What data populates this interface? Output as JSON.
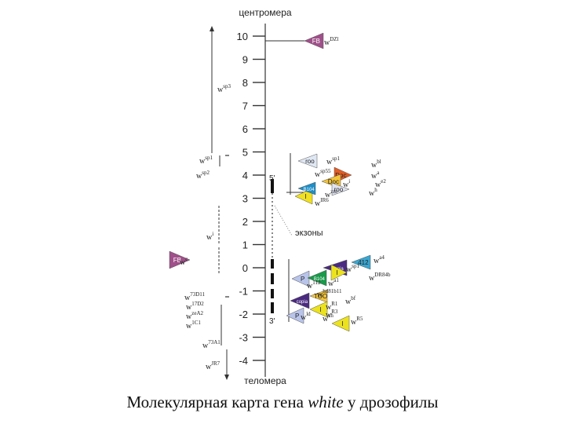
{
  "title": "центромера",
  "bottom_label": "теломера",
  "exons_label": "экзоны",
  "five_prime": "5'",
  "three_prime": "3'",
  "caption": {
    "before": "Молекулярная карта гена ",
    "gene": "white",
    "after": "  у дрозофилы"
  },
  "scale_ticks": [
    "10",
    "9",
    "8",
    "7",
    "6",
    "5",
    "4",
    "3",
    "2",
    "1",
    "0",
    "-1",
    "-2",
    "-3",
    "-4"
  ],
  "left_alleles": [
    {
      "base": "w",
      "sup": "sp3"
    },
    {
      "base": "w",
      "sup": "sp1"
    },
    {
      "base": "w",
      "sup": "sp2"
    },
    {
      "base": "w",
      "sup": "i"
    },
    {
      "base": "w",
      "sup": "c"
    },
    {
      "base": "w",
      "sup": "73D11"
    },
    {
      "base": "w",
      "sup": "17D2"
    },
    {
      "base": "w",
      "sup": "zeA2"
    },
    {
      "base": "w",
      "sup": "1C1"
    },
    {
      "base": "w",
      "sup": "73A1"
    },
    {
      "base": "w",
      "sup": "JR7"
    }
  ],
  "right_alleles": [
    {
      "base": "w",
      "sup": "DZl"
    },
    {
      "base": "w",
      "sup": "sp1"
    },
    {
      "base": "w",
      "sup": "sp55"
    },
    {
      "base": "w",
      "sup": "zm"
    },
    {
      "base": "w",
      "sup": "IR6"
    },
    {
      "base": "w",
      "sup": "i"
    },
    {
      "base": "w",
      "sup": "bl"
    },
    {
      "base": "w",
      "sup": "a"
    },
    {
      "base": "w",
      "sup": "e2"
    },
    {
      "base": "w",
      "sup": "h"
    },
    {
      "base": "w",
      "sup": "a4"
    },
    {
      "base": "w",
      "sup": "sp1"
    },
    {
      "base": "w",
      "sup": "DR84b"
    },
    {
      "base": "w",
      "sup": "112"
    },
    {
      "base": "w",
      "sup": "a1"
    },
    {
      "base": "w",
      "sup": "hd81b11"
    },
    {
      "base": "w",
      "sup": "bf"
    },
    {
      "base": "w",
      "sup": "R1"
    },
    {
      "base": "w",
      "sup": "R3"
    },
    {
      "base": "w",
      "sup": "R5"
    },
    {
      "base": "w",
      "sup": "ld"
    },
    {
      "base": "w",
      "sup": "ch"
    }
  ],
  "insertions": [
    {
      "label": "FB",
      "color": "#a0508a"
    },
    {
      "label": "roo",
      "color": "#dfe7f3"
    },
    {
      "label": "Doc",
      "color": "#e25c24"
    },
    {
      "label": "Doc",
      "color": "#f3c43a"
    },
    {
      "label": "roo",
      "color": "#dfe2ee"
    },
    {
      "label": "I",
      "color": "#f0e020"
    },
    {
      "label": "B104",
      "color": "#1e8fc8"
    },
    {
      "label": "FB",
      "color": "#a0508a"
    },
    {
      "label": "copia",
      "color": "#4a2a80"
    },
    {
      "label": "412",
      "color": "#3aa6d0"
    },
    {
      "label": "I",
      "color": "#ece21e"
    },
    {
      "label": "P",
      "color": "#b9c4ea"
    },
    {
      "label": "B104",
      "color": "#1a9a4a"
    },
    {
      "label": "copia",
      "color": "#4a2a80"
    },
    {
      "label": "TOO",
      "color": "#f3c43a"
    },
    {
      "label": "I",
      "color": "#ece21e"
    },
    {
      "label": "P",
      "color": "#b9c4ea"
    },
    {
      "label": "I",
      "color": "#ece21e"
    }
  ]
}
